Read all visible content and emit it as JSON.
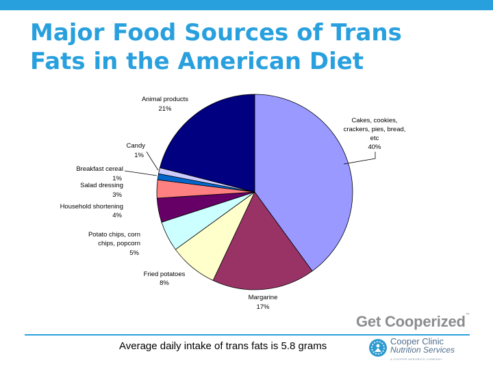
{
  "title_line1": "Major Food Sources of Trans",
  "title_line2": "Fats in the American Diet",
  "chart_data": {
    "type": "pie",
    "slices": [
      {
        "label": "Cakes, cookies, crackers, pies, bread, etc",
        "value": 40,
        "value_label": "40%",
        "color": "#9999ff"
      },
      {
        "label": "Margarine",
        "value": 17,
        "value_label": "17%",
        "color": "#993366"
      },
      {
        "label": "Fried potatoes",
        "value": 8,
        "value_label": "8%",
        "color": "#ffffcc"
      },
      {
        "label": "Potato chips, corn chips, popcorn",
        "value": 5,
        "value_label": "5%",
        "color": "#ccffff"
      },
      {
        "label": "Household shortening",
        "value": 4,
        "value_label": "4%",
        "color": "#660066"
      },
      {
        "label": "Salad dressing",
        "value": 3,
        "value_label": "3%",
        "color": "#ff8080"
      },
      {
        "label": "Breakfast cereal",
        "value": 1,
        "value_label": "1%",
        "color": "#0066cc"
      },
      {
        "label": "Candy",
        "value": 1,
        "value_label": "1%",
        "color": "#ccccff"
      },
      {
        "label": "Animal products",
        "value": 21,
        "value_label": "21%",
        "color": "#000080"
      }
    ]
  },
  "caption": "Average daily intake of trans fats is 5.8 grams",
  "brand": {
    "tagline": "Get Cooperized",
    "tm": "™",
    "logo_line1": "Cooper Clinic",
    "logo_line2": "Nutrition Services",
    "logo_line3": "A COOPER AEROBICS COMPANY"
  }
}
